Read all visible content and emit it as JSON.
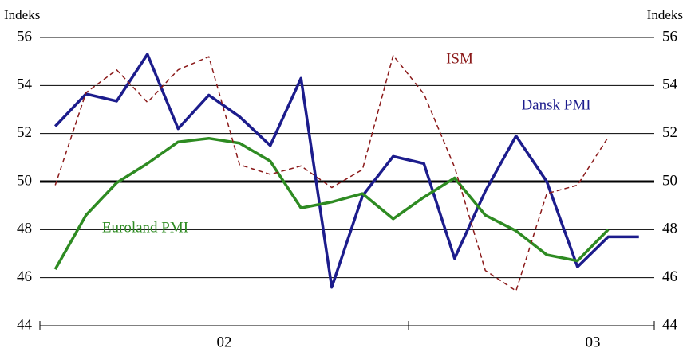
{
  "chart_data": {
    "type": "line",
    "y_label": "Indeks",
    "y2_label": "Indeks",
    "categories": [
      null,
      null,
      null,
      null,
      null,
      null,
      null,
      null,
      null,
      null,
      null,
      null,
      null,
      null,
      null,
      null,
      null,
      null,
      null,
      null
    ],
    "year_labels": [
      "02",
      "03"
    ],
    "series": [
      {
        "name": "Dansk PMI",
        "color": "#1c1c8c",
        "values": [
          52.3,
          53.65,
          53.35,
          55.3,
          52.2,
          53.6,
          52.7,
          51.5,
          54.3,
          45.6,
          49.4,
          51.05,
          50.75,
          46.8,
          49.6,
          51.9,
          50.0,
          46.45,
          47.7,
          47.7
        ]
      },
      {
        "name": "Euroland PMI",
        "color": "#2e8b22",
        "values": [
          46.35,
          48.6,
          49.95,
          50.75,
          51.65,
          51.8,
          51.6,
          50.85,
          48.9,
          49.15,
          49.5,
          48.45,
          49.35,
          50.15,
          48.6,
          47.95,
          46.95,
          46.7,
          48.0,
          null
        ]
      },
      {
        "name": "ISM",
        "color": "#8b1a1a",
        "dashed": true,
        "values": [
          49.85,
          53.7,
          54.65,
          53.3,
          54.65,
          55.2,
          50.7,
          50.3,
          50.65,
          49.75,
          50.5,
          55.25,
          53.65,
          50.6,
          46.3,
          45.45,
          49.5,
          49.85,
          51.85,
          null
        ]
      }
    ],
    "ylim": [
      44,
      56
    ],
    "yticks": [
      44,
      46,
      48,
      50,
      52,
      54,
      56
    ],
    "y2lim": [
      44,
      56
    ],
    "y2ticks": [
      44,
      46,
      48,
      50,
      52,
      54,
      56
    ],
    "reference_line": 50,
    "grid": true
  }
}
